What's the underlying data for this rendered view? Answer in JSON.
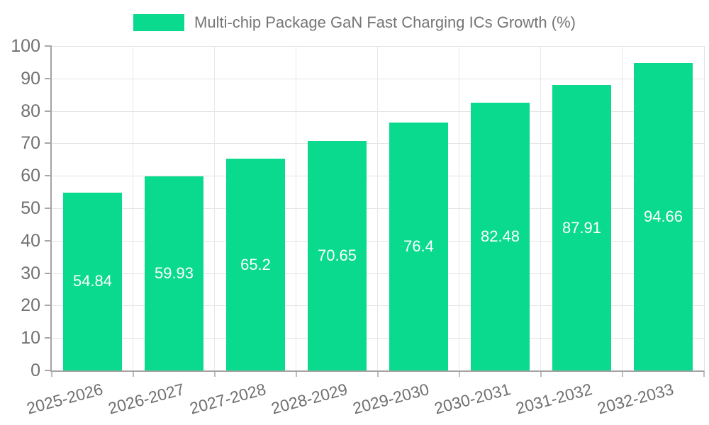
{
  "legend": {
    "swatch_color": "#0ada8e",
    "label": "Multi-chip Package GaN Fast Charging ICs Growth (%)"
  },
  "chart_data": {
    "type": "bar",
    "title": "Multi-chip Package GaN Fast Charging ICs Growth (%)",
    "categories": [
      "2025-2026",
      "2026-2027",
      "2027-2028",
      "2028-2029",
      "2029-2030",
      "2030-2031",
      "2031-2032",
      "2032-2033"
    ],
    "values": [
      54.84,
      59.93,
      65.2,
      70.65,
      76.4,
      82.48,
      87.91,
      94.66
    ],
    "value_labels": [
      "54.84",
      "59.93",
      "65.2",
      "70.65",
      "76.4",
      "82.48",
      "87.91",
      "94.66"
    ],
    "xlabel": "",
    "ylabel": "",
    "ylim": [
      0,
      100
    ],
    "yticks": [
      0,
      10,
      20,
      30,
      40,
      50,
      60,
      70,
      80,
      90,
      100
    ],
    "grid": true,
    "legend_position": "top",
    "bar_color": "#0ada8e",
    "value_label_color": "#ffffff",
    "axis_line_color": "#a3a3a3",
    "grid_color": "#e4e4e4",
    "tick_text_color": "#707070",
    "title_text_color": "#757575"
  }
}
